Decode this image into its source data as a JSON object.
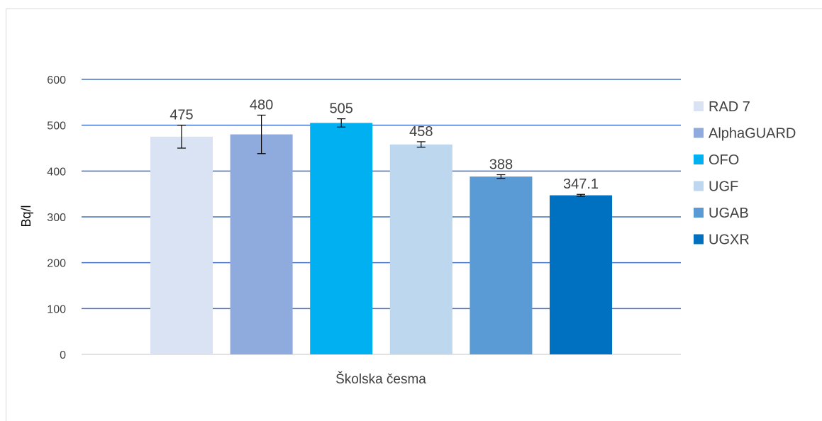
{
  "chart_data": {
    "type": "bar",
    "title": "",
    "xlabel": "",
    "ylabel": "Bq/l",
    "ylim": [
      0,
      600
    ],
    "yticks": [
      0,
      100,
      200,
      300,
      400,
      500,
      600
    ],
    "grid": true,
    "legend_position": "right",
    "categories": [
      "Školska česma"
    ],
    "series": [
      {
        "name": "RAD 7",
        "values": [
          475
        ],
        "label": "475",
        "error": [
          25
        ],
        "color": "#dae3f3"
      },
      {
        "name": "AlphaGUARD",
        "values": [
          480
        ],
        "label": "480",
        "error": [
          42
        ],
        "color": "#8faadc"
      },
      {
        "name": "OFO",
        "values": [
          505
        ],
        "label": "505",
        "error": [
          9
        ],
        "color": "#00b0f0"
      },
      {
        "name": "UGF",
        "values": [
          458
        ],
        "label": "458",
        "error": [
          6
        ],
        "color": "#bdd7ee"
      },
      {
        "name": "UGAB",
        "values": [
          388
        ],
        "label": "388",
        "error": [
          4
        ],
        "color": "#5b9bd5"
      },
      {
        "name": "UGXR",
        "values": [
          347.1
        ],
        "label": "347.1",
        "error": [
          2
        ],
        "color": "#0070c0"
      }
    ],
    "gridline_color": "#4472c4",
    "error_bar_color": "#000000"
  }
}
